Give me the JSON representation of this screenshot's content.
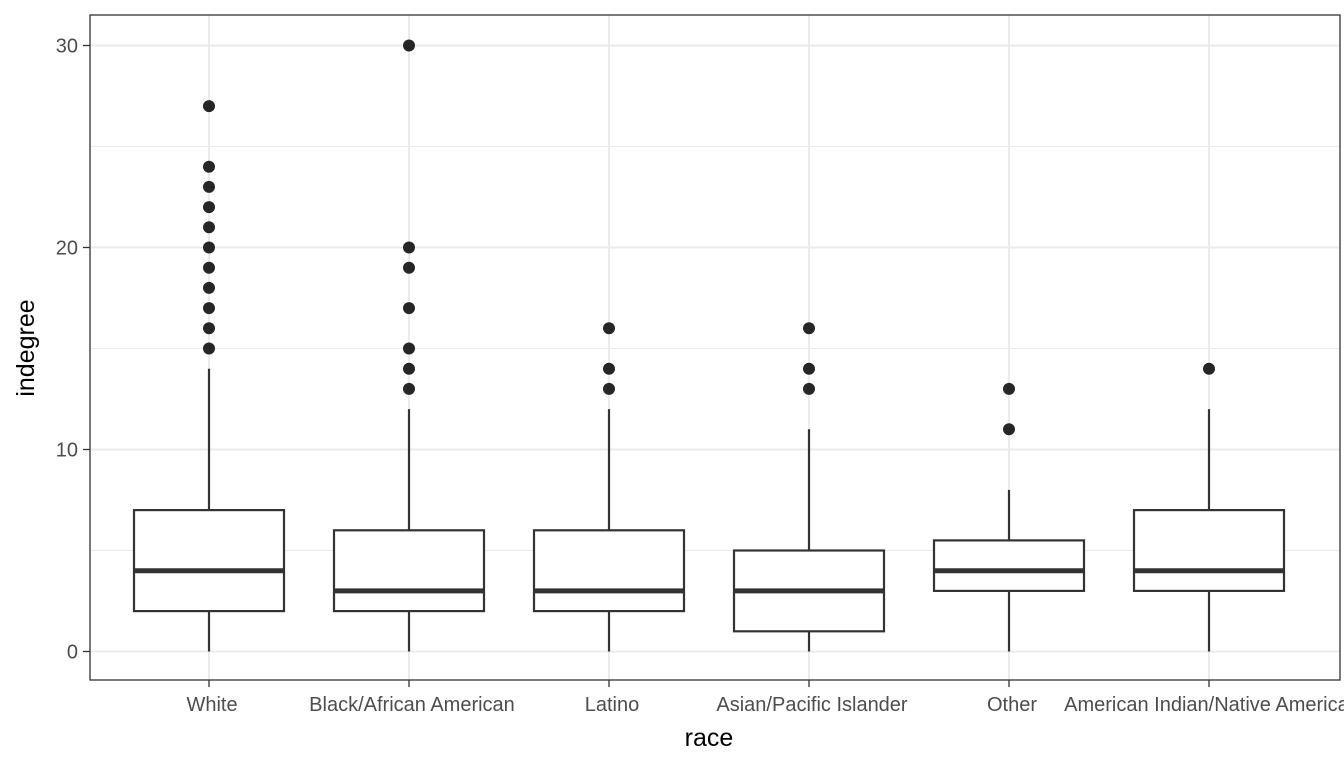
{
  "chart_data": {
    "type": "boxplot",
    "xlabel": "race",
    "ylabel": "indegree",
    "ylim": [
      -1.5,
      31.5
    ],
    "yticks": [
      0,
      10,
      20,
      30
    ],
    "grid": true,
    "categories": [
      "White",
      "Black/African American",
      "Latino",
      "Asian/Pacific Islander",
      "Other",
      "American Indian/Native American"
    ],
    "boxes": [
      {
        "category": "White",
        "lower_whisker": 0,
        "q1": 2,
        "median": 4,
        "q3": 7,
        "upper_whisker": 14,
        "outliers": [
          15,
          16,
          17,
          18,
          19,
          20,
          21,
          22,
          23,
          24,
          27
        ]
      },
      {
        "category": "Black/African American",
        "lower_whisker": 0,
        "q1": 2,
        "median": 3,
        "q3": 6,
        "upper_whisker": 12,
        "outliers": [
          13,
          14,
          15,
          17,
          19,
          20,
          30
        ]
      },
      {
        "category": "Latino",
        "lower_whisker": 0,
        "q1": 2,
        "median": 3,
        "q3": 6,
        "upper_whisker": 12,
        "outliers": [
          13,
          14,
          16
        ]
      },
      {
        "category": "Asian/Pacific Islander",
        "lower_whisker": 0,
        "q1": 1,
        "median": 3,
        "q3": 5,
        "upper_whisker": 11,
        "outliers": [
          13,
          14,
          16
        ]
      },
      {
        "category": "Other",
        "lower_whisker": 0,
        "q1": 3,
        "median": 4,
        "q3": 5.5,
        "upper_whisker": 8,
        "outliers": [
          11,
          13
        ]
      },
      {
        "category": "American Indian/Native American",
        "lower_whisker": 0,
        "q1": 3,
        "median": 4,
        "q3": 7,
        "upper_whisker": 12,
        "outliers": [
          14
        ]
      }
    ]
  }
}
